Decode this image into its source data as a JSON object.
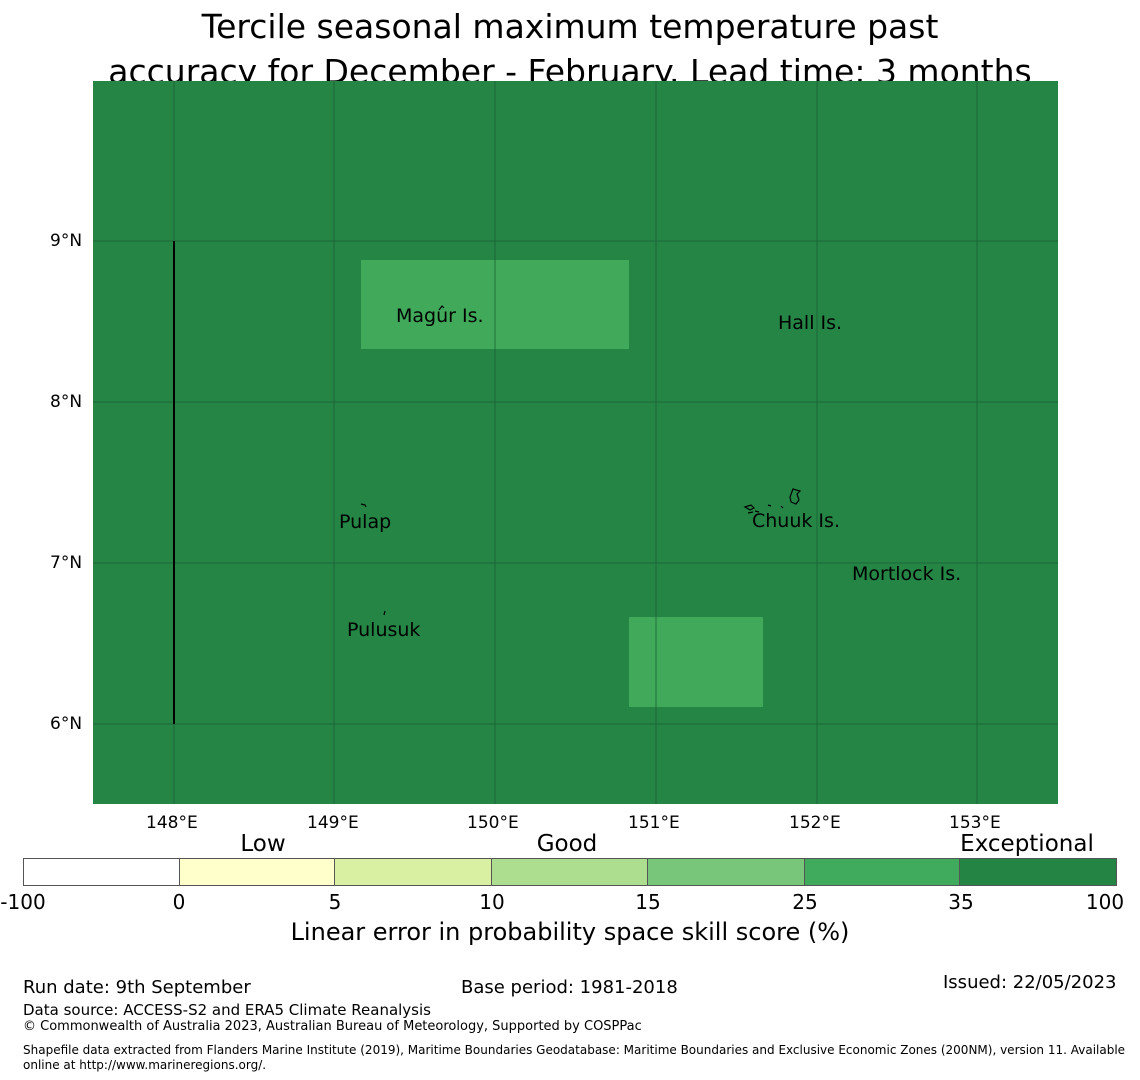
{
  "title_line1": "Tercile seasonal maximum temperature past",
  "title_line2": "accuracy for December - February. Lead time: 3 months",
  "map": {
    "background_color": "#248545",
    "patch_color": "#40a95a",
    "lat_labels": [
      "9°N",
      "8°N",
      "7°N",
      "6°N"
    ],
    "lon_labels": [
      "148°E",
      "149°E",
      "150°E",
      "151°E",
      "152°E",
      "153°E"
    ],
    "places": {
      "magur": "Magur Is.",
      "hall": "Hall Is.",
      "pulap": "Pulap",
      "chuuk": "Chuuk Is.",
      "mortlock": "Mortlock Is.",
      "pulusuk": "Pulusuk"
    }
  },
  "legend": {
    "categories": {
      "low": "Low",
      "good": "Good",
      "exceptional": "Exceptional"
    },
    "ticks": [
      "-100",
      "0",
      "5",
      "10",
      "15",
      "25",
      "35",
      "100"
    ],
    "colors": [
      "#ffffff",
      "#ffffcc",
      "#d9f0a3",
      "#addd8e",
      "#78c679",
      "#41ab5d",
      "#238443"
    ],
    "label": "Linear error in probability space skill score (%)"
  },
  "footer": {
    "run_date": "Run date: 9th September",
    "base_period": "Base period: 1981-2018",
    "issued": "Issued: 22/05/2023",
    "data_source": "Data source: ACCESS-S2 and ERA5 Climate Reanalysis",
    "copyright": "© Commonwealth of Australia 2023, Australian Bureau of Meteorology, Supported by COSPPac",
    "shapefile_line1": "Shapefile data extracted from Flanders Marine Institute (2019), Maritime Boundaries Geodatabase: Maritime Boundaries and Exclusive Economic Zones (200NM), version 11. Available",
    "shapefile_line2": "online at http://www.marineregions.org/."
  }
}
